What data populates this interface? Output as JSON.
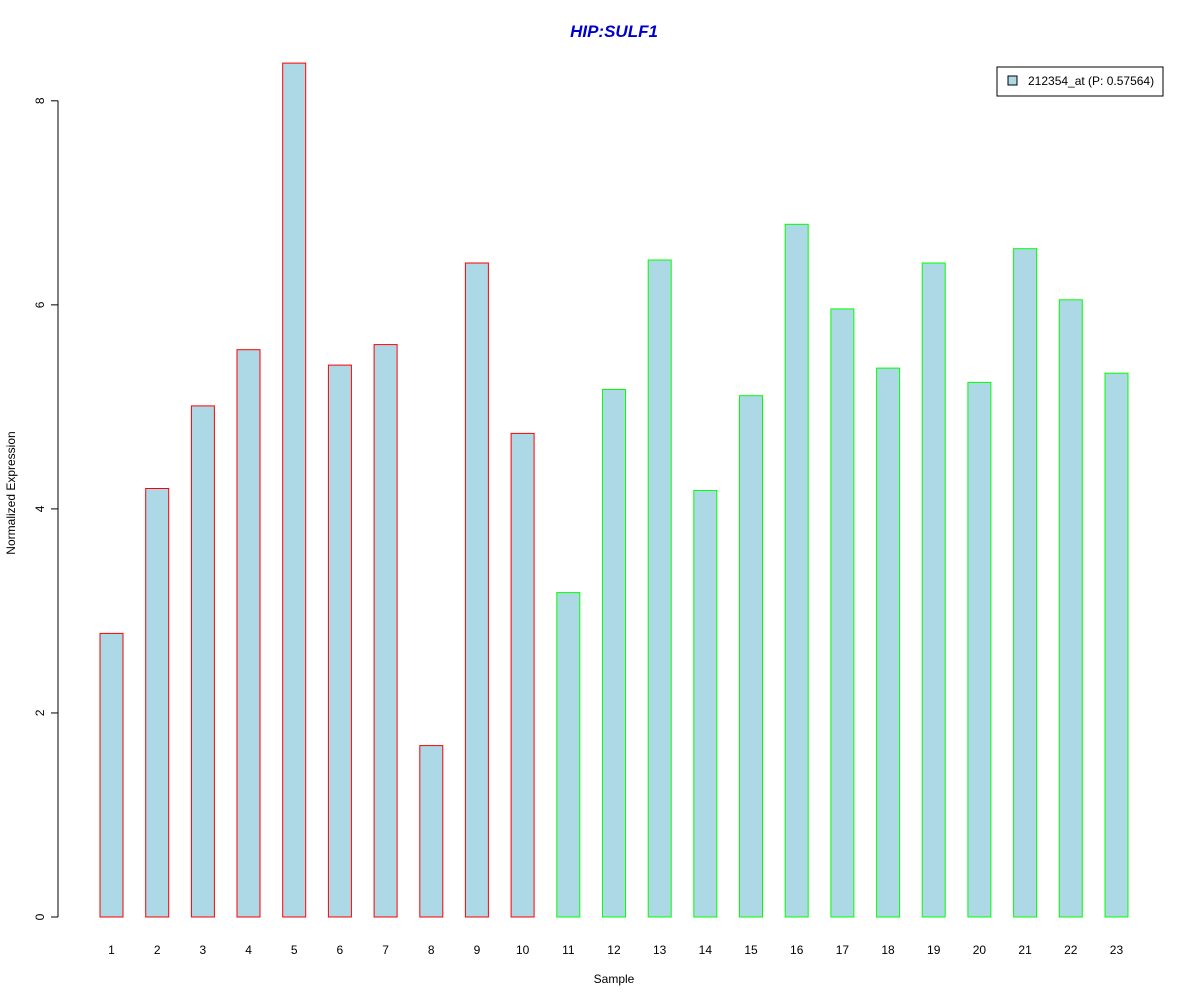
{
  "chart_data": {
    "type": "bar",
    "title": "HIP:SULF1",
    "title_color": "#0000cc",
    "xlabel": "Sample",
    "ylabel": "Normalized Expression",
    "categories": [
      "1",
      "2",
      "3",
      "4",
      "5",
      "6",
      "7",
      "8",
      "9",
      "10",
      "11",
      "12",
      "13",
      "14",
      "15",
      "16",
      "17",
      "18",
      "19",
      "20",
      "21",
      "22",
      "23"
    ],
    "series": [
      {
        "name": "212354_at (P: 0.57564)",
        "values": [
          2.78,
          4.2,
          5.01,
          5.56,
          8.37,
          5.41,
          5.61,
          1.68,
          6.41,
          4.74,
          3.18,
          5.17,
          6.44,
          4.18,
          5.11,
          6.79,
          5.96,
          5.38,
          6.41,
          5.24,
          6.55,
          6.05,
          5.33
        ],
        "fill": "#add8e6"
      }
    ],
    "group_border_colors": [
      "#ff0000",
      "#ff0000",
      "#ff0000",
      "#ff0000",
      "#ff0000",
      "#ff0000",
      "#ff0000",
      "#ff0000",
      "#ff0000",
      "#ff0000",
      "#00ff00",
      "#00ff00",
      "#00ff00",
      "#00ff00",
      "#00ff00",
      "#00ff00",
      "#00ff00",
      "#00ff00",
      "#00ff00",
      "#00ff00",
      "#00ff00",
      "#00ff00",
      "#00ff00"
    ],
    "ylim": [
      0,
      8.4
    ],
    "yticks": [
      "0",
      "2",
      "4",
      "6",
      "8"
    ],
    "grid": false,
    "legend_position": "top-right"
  }
}
